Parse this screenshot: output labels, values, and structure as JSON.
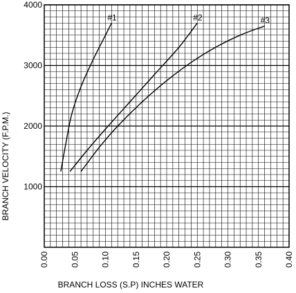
{
  "chart_data": {
    "type": "line",
    "title": "",
    "xlabel": "BRANCH LOSS (S.P) INCHES WATER",
    "ylabel": "BRANCH VELOCITY (F.P.M.)",
    "xlim": [
      0.0,
      0.4
    ],
    "ylim": [
      0,
      4000
    ],
    "x_ticks": [
      "0.00",
      "0.05",
      "0.10",
      "0.15",
      "0.20",
      "0.25",
      "0.30",
      "0.35",
      "0.40"
    ],
    "y_ticks": [
      "1000",
      "2000",
      "3000",
      "4000"
    ],
    "grid": true,
    "series": [
      {
        "name": "#1",
        "x": [
          0.027,
          0.035,
          0.045,
          0.06,
          0.08,
          0.1,
          0.11
        ],
        "y": [
          1250,
          1700,
          2200,
          2650,
          3100,
          3500,
          3700
        ]
      },
      {
        "name": "#2",
        "x": [
          0.042,
          0.07,
          0.1,
          0.14,
          0.18,
          0.22,
          0.25
        ],
        "y": [
          1250,
          1600,
          1950,
          2400,
          2850,
          3300,
          3700
        ]
      },
      {
        "name": "#3",
        "x": [
          0.06,
          0.09,
          0.12,
          0.16,
          0.2,
          0.24,
          0.28,
          0.32,
          0.36
        ],
        "y": [
          1250,
          1650,
          2000,
          2400,
          2750,
          3050,
          3300,
          3500,
          3650
        ]
      }
    ]
  }
}
